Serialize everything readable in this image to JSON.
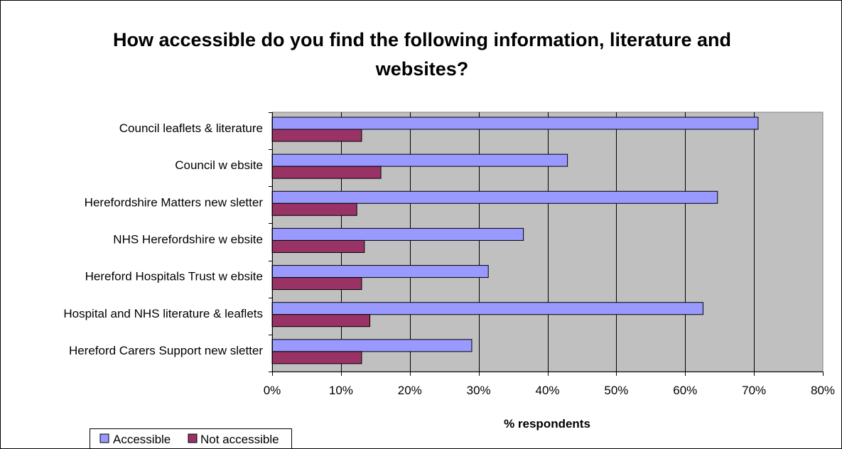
{
  "chart_data": {
    "type": "bar",
    "orientation": "horizontal",
    "title": "How accessible do you find the following information, literature and websites?",
    "title_lines": [
      "How accessible do you find the following information, literature and",
      "websites?"
    ],
    "xlabel": "% respondents",
    "ylabel": "",
    "xlim": [
      0,
      0.8
    ],
    "x_ticks": [
      "0%",
      "10%",
      "20%",
      "30%",
      "40%",
      "50%",
      "60%",
      "70%",
      "80%"
    ],
    "grid": true,
    "legend_position": "bottom-left",
    "categories": [
      "Council leaflets & literature",
      "Council w ebsite",
      "Herefordshire Matters new sletter",
      "NHS Herefordshire w ebsite",
      "Hereford Hospitals Trust w ebsite",
      "Hospital and NHS literature & leaflets",
      "Hereford Carers Support new sletter"
    ],
    "series": [
      {
        "name": "Accessible",
        "color": "#9999FF",
        "values": [
          0.706,
          0.429,
          0.647,
          0.365,
          0.314,
          0.626,
          0.29
        ]
      },
      {
        "name": "Not accessible",
        "color": "#993366",
        "values": [
          0.13,
          0.158,
          0.123,
          0.134,
          0.13,
          0.142,
          0.13
        ]
      }
    ],
    "plot_background": "#C0C0C0"
  }
}
